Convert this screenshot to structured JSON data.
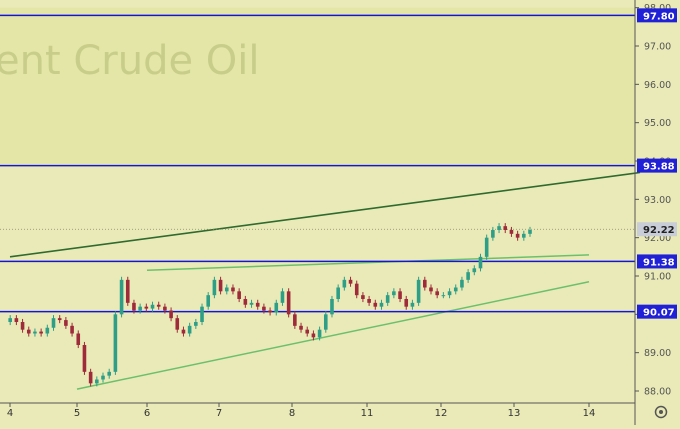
{
  "watermark": "ent Crude Oil",
  "settings_icon": "gear-icon",
  "colors": {
    "background": "#e9eab7",
    "upper_zone": "#e3e6a6",
    "level_line": "#1515d8",
    "channel_line": "#2f6a2f",
    "trend_line": "#6cc06c",
    "candle_up": "#2f9e86",
    "candle_down": "#9e2a3a",
    "price_label_bg": "#2020d6",
    "current_price_bg": "#c8cdd8"
  },
  "chart_data": {
    "type": "candlestick",
    "title": "",
    "xlabel": "",
    "ylabel": "",
    "ylim": [
      87.6,
      98.0
    ],
    "y_ticks": [
      "88.00",
      "89.00",
      "90.00",
      "91.00",
      "92.00",
      "93.00",
      "94.00",
      "95.00",
      "96.00",
      "97.00",
      "98.00"
    ],
    "x_ticks": [
      "4",
      "5",
      "6",
      "7",
      "8",
      "11",
      "12",
      "13",
      "14"
    ],
    "grid": false,
    "levels": [
      {
        "label": "97.80",
        "value": 97.8
      },
      {
        "label": "93.88",
        "value": 93.88
      },
      {
        "label": "91.38",
        "value": 91.38
      },
      {
        "label": "90.07",
        "value": 90.07
      }
    ],
    "current_price": {
      "label": "92.22",
      "value": 92.22
    },
    "trendlines": [
      {
        "name": "",
        "from": {
          "x": "4",
          "y": 91.5
        },
        "to": {
          "x": "14 +",
          "y": 93.7
        }
      },
      {
        "name": "",
        "from": {
          "x": "6",
          "y": 91.15
        },
        "to": {
          "x": "14",
          "y": 91.55
        }
      },
      {
        "name": "",
        "from": {
          "x": "5",
          "y": 88.05
        },
        "to": {
          "x": "14",
          "y": 90.85
        }
      }
    ],
    "price_path": [
      89.8,
      89.9,
      89.8,
      89.6,
      89.5,
      89.55,
      89.5,
      89.65,
      89.9,
      89.85,
      89.7,
      89.5,
      89.2,
      88.5,
      88.2,
      88.3,
      88.4,
      88.5,
      90.0,
      90.9,
      90.3,
      90.1,
      90.2,
      90.15,
      90.25,
      90.2,
      90.1,
      89.9,
      89.6,
      89.5,
      89.7,
      89.8,
      90.2,
      90.5,
      90.9,
      90.6,
      90.7,
      90.6,
      90.4,
      90.25,
      90.3,
      90.2,
      90.1,
      90.05,
      90.3,
      90.6,
      90.0,
      89.7,
      89.6,
      89.5,
      89.4,
      89.6,
      90.0,
      90.4,
      90.7,
      90.9,
      90.8,
      90.5,
      90.4,
      90.3,
      90.2,
      90.3,
      90.5,
      90.6,
      90.4,
      90.2,
      90.3,
      90.9,
      90.7,
      90.6,
      90.5,
      90.5,
      90.6,
      90.7,
      90.9,
      91.1,
      91.2,
      91.5,
      92.0,
      92.2,
      92.3,
      92.2,
      92.1,
      92.0,
      92.1,
      92.2
    ]
  }
}
